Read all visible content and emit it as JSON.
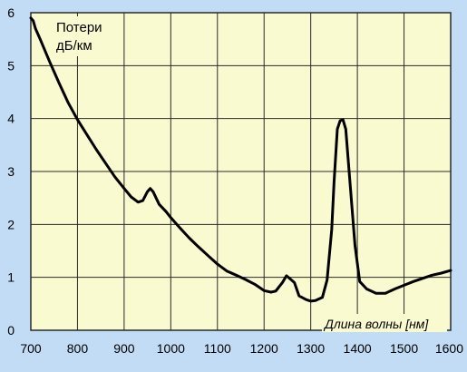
{
  "colors": {
    "background": "#c2dcf6",
    "plot_area": "#fafad0",
    "grid": "#2a2a2a",
    "line": "#000000",
    "text": "#000000"
  },
  "chart_data": {
    "type": "line",
    "ylabel_line1": "Потери",
    "ylabel_line2": "дБ/км",
    "xlabel": "Длина волны [нм]",
    "xlim": [
      700,
      1600
    ],
    "ylim": [
      0,
      6
    ],
    "x_ticks": [
      "700",
      "800",
      "900",
      "1000",
      "1100",
      "1200",
      "1300",
      "1400",
      "1500",
      "1600"
    ],
    "y_ticks": [
      "0",
      "1",
      "2",
      "3",
      "4",
      "5",
      "6"
    ],
    "grid": true,
    "series": [
      {
        "points": [
          [
            700,
            5.9
          ],
          [
            705,
            5.85
          ],
          [
            710,
            5.7
          ],
          [
            720,
            5.5
          ],
          [
            740,
            5.08
          ],
          [
            760,
            4.68
          ],
          [
            780,
            4.3
          ],
          [
            800,
            3.98
          ],
          [
            820,
            3.7
          ],
          [
            840,
            3.42
          ],
          [
            860,
            3.16
          ],
          [
            880,
            2.9
          ],
          [
            900,
            2.68
          ],
          [
            915,
            2.52
          ],
          [
            930,
            2.42
          ],
          [
            940,
            2.45
          ],
          [
            950,
            2.62
          ],
          [
            956,
            2.68
          ],
          [
            962,
            2.62
          ],
          [
            975,
            2.38
          ],
          [
            990,
            2.24
          ],
          [
            1000,
            2.13
          ],
          [
            1020,
            1.93
          ],
          [
            1040,
            1.74
          ],
          [
            1060,
            1.57
          ],
          [
            1080,
            1.41
          ],
          [
            1100,
            1.25
          ],
          [
            1120,
            1.12
          ],
          [
            1140,
            1.04
          ],
          [
            1160,
            0.96
          ],
          [
            1180,
            0.87
          ],
          [
            1200,
            0.75
          ],
          [
            1215,
            0.72
          ],
          [
            1225,
            0.74
          ],
          [
            1240,
            0.91
          ],
          [
            1248,
            1.03
          ],
          [
            1256,
            0.97
          ],
          [
            1265,
            0.9
          ],
          [
            1275,
            0.65
          ],
          [
            1290,
            0.58
          ],
          [
            1300,
            0.55
          ],
          [
            1310,
            0.56
          ],
          [
            1325,
            0.62
          ],
          [
            1335,
            0.95
          ],
          [
            1345,
            1.9
          ],
          [
            1350,
            2.8
          ],
          [
            1357,
            3.8
          ],
          [
            1363,
            3.96
          ],
          [
            1369,
            3.98
          ],
          [
            1375,
            3.8
          ],
          [
            1385,
            2.7
          ],
          [
            1395,
            1.6
          ],
          [
            1405,
            0.92
          ],
          [
            1420,
            0.78
          ],
          [
            1440,
            0.7
          ],
          [
            1460,
            0.7
          ],
          [
            1480,
            0.78
          ],
          [
            1500,
            0.85
          ],
          [
            1520,
            0.92
          ],
          [
            1540,
            0.98
          ],
          [
            1560,
            1.04
          ],
          [
            1580,
            1.08
          ],
          [
            1600,
            1.13
          ]
        ]
      }
    ]
  }
}
